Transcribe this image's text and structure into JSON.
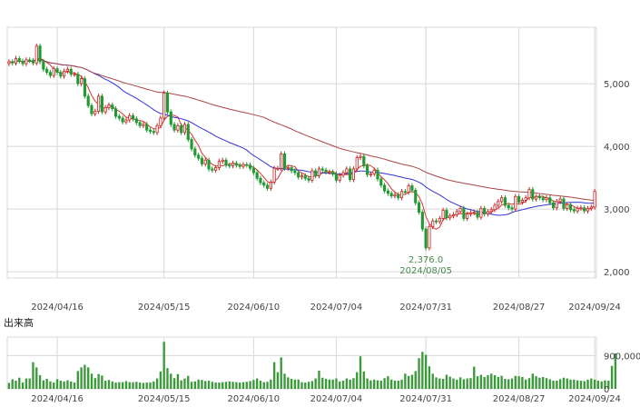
{
  "chart_data": {
    "type": "candlestick",
    "dates": [
      "2024/04/16",
      "2024/05/15",
      "2024/06/10",
      "2024/07/04",
      "2024/07/31",
      "2024/08/27",
      "2024/09/24"
    ],
    "price_ticks": [
      "5,000",
      "4,000",
      "3,000",
      "2,000"
    ],
    "price_tick_values": [
      5000,
      4000,
      3000,
      2000
    ],
    "ylim": [
      1900,
      5900
    ],
    "volume_label": "出来高",
    "volume_ticks": [
      "900,000",
      "0"
    ],
    "volume_tick_values": [
      900000,
      0
    ],
    "vlim": [
      0,
      1400000
    ],
    "annotation": {
      "value_text": "2,376.0",
      "date_text": "2024/08/05",
      "value": 2376
    },
    "colors": {
      "up": "#cc2222",
      "down": "#229933",
      "ma_short": "#dd3333",
      "ma_mid": "#3333dd",
      "ma_long": "#aa4444",
      "grid": "#d8d8d8",
      "volume": "#3a9a3a"
    },
    "closes": [
      5350,
      5330,
      5400,
      5360,
      5320,
      5380,
      5370,
      5330,
      5600,
      5350,
      5230,
      5180,
      5130,
      5240,
      5180,
      5120,
      5200,
      5230,
      5150,
      5150,
      5000,
      5080,
      4800,
      4650,
      4520,
      4560,
      4800,
      4550,
      4620,
      4660,
      4600,
      4480,
      4450,
      4390,
      4420,
      4490,
      4440,
      4380,
      4330,
      4350,
      4260,
      4240,
      4220,
      4330,
      4450,
      4850,
      4550,
      4350,
      4260,
      4330,
      4220,
      4350,
      4110,
      3960,
      3860,
      3810,
      3720,
      3780,
      3640,
      3620,
      3660,
      3760,
      3780,
      3700,
      3690,
      3730,
      3700,
      3680,
      3710,
      3700,
      3650,
      3580,
      3490,
      3420,
      3380,
      3330,
      3430,
      3650,
      3650,
      3880,
      3650,
      3660,
      3610,
      3580,
      3510,
      3530,
      3490,
      3460,
      3610,
      3530,
      3640,
      3620,
      3590,
      3590,
      3560,
      3460,
      3540,
      3580,
      3640,
      3470,
      3640,
      3820,
      3840,
      3690,
      3550,
      3560,
      3620,
      3480,
      3380,
      3290,
      3250,
      3210,
      3230,
      3180,
      3280,
      3270,
      3370,
      3300,
      3100,
      2950,
      2680,
      2380,
      2720,
      2810,
      2800,
      2850,
      2980,
      2860,
      2890,
      2910,
      2960,
      3010,
      2850,
      2920,
      2940,
      2950,
      2870,
      3010,
      2920,
      2960,
      2990,
      3060,
      3120,
      3180,
      3060,
      3020,
      3000,
      3200,
      3110,
      3140,
      3180,
      3310,
      3160,
      3200,
      3180,
      3150,
      3180,
      3100,
      3020,
      3120,
      3160,
      3010,
      3070,
      2990,
      2970,
      3010,
      3020,
      2970,
      3010,
      3030,
      3280
    ],
    "volumes": [
      160000,
      260000,
      220000,
      300000,
      170000,
      280000,
      280000,
      720000,
      580000,
      370000,
      230000,
      270000,
      200000,
      170000,
      260000,
      220000,
      200000,
      230000,
      200000,
      170000,
      480000,
      580000,
      650000,
      580000,
      410000,
      290000,
      400000,
      360000,
      220000,
      240000,
      200000,
      170000,
      180000,
      180000,
      210000,
      180000,
      180000,
      190000,
      170000,
      160000,
      170000,
      170000,
      200000,
      280000,
      470000,
      1270000,
      560000,
      410000,
      290000,
      400000,
      230000,
      280000,
      350000,
      190000,
      200000,
      250000,
      240000,
      210000,
      220000,
      190000,
      170000,
      170000,
      180000,
      190000,
      200000,
      190000,
      180000,
      170000,
      180000,
      190000,
      210000,
      240000,
      280000,
      220000,
      180000,
      190000,
      250000,
      720000,
      450000,
      850000,
      410000,
      310000,
      270000,
      250000,
      250000,
      180000,
      170000,
      190000,
      210000,
      280000,
      490000,
      300000,
      270000,
      250000,
      250000,
      280000,
      200000,
      220000,
      280000,
      250000,
      290000,
      450000,
      880000,
      470000,
      280000,
      230000,
      250000,
      230000,
      220000,
      290000,
      340000,
      250000,
      220000,
      220000,
      250000,
      410000,
      350000,
      380000,
      480000,
      830000,
      1000000,
      920000,
      610000,
      410000,
      310000,
      280000,
      270000,
      380000,
      330000,
      280000,
      250000,
      310000,
      260000,
      280000,
      290000,
      600000,
      340000,
      380000,
      320000,
      370000,
      410000,
      370000,
      320000,
      350000,
      270000,
      260000,
      280000,
      350000,
      340000,
      320000,
      250000,
      290000,
      410000,
      340000,
      300000,
      320000,
      290000,
      260000,
      220000,
      220000,
      260000,
      300000,
      280000,
      250000,
      250000,
      230000,
      220000,
      210000,
      250000,
      280000,
      250000,
      220000,
      200000,
      230000,
      220000,
      620000,
      960000
    ]
  }
}
